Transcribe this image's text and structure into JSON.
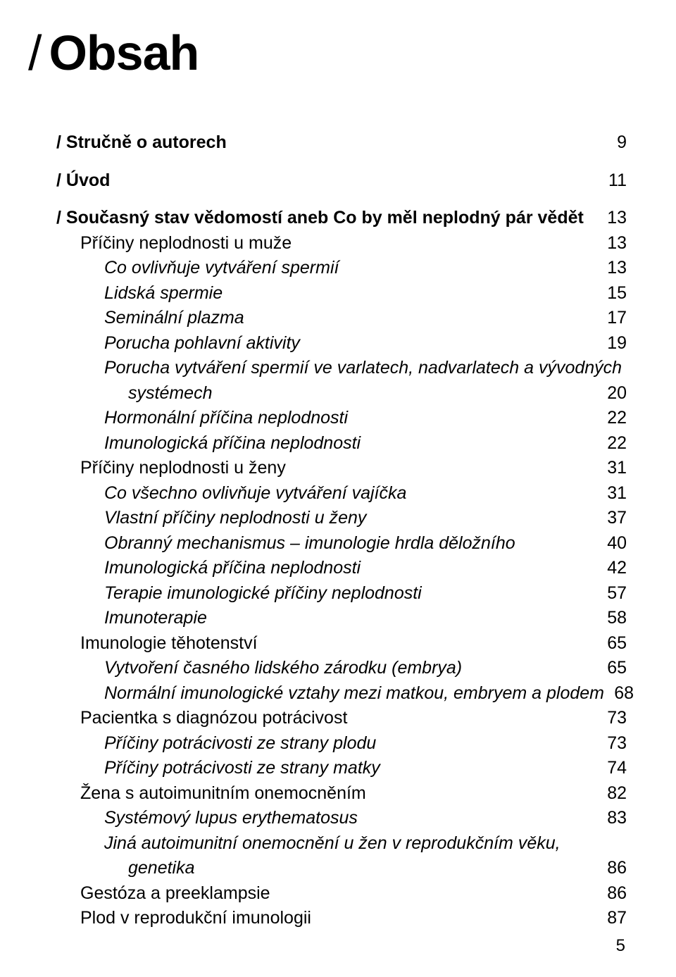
{
  "title": {
    "slash": "/",
    "text": "Obsah"
  },
  "entries": [
    {
      "label": "/ Stručně o autorech",
      "page": "9",
      "indent": 0,
      "style": "bold",
      "gapAfter": true
    },
    {
      "label": "/ Úvod",
      "page": "11",
      "indent": 0,
      "style": "bold",
      "gapAfter": true
    },
    {
      "label": "/ Současný stav vědomostí aneb Co by měl neplodný pár vědět",
      "page": "13",
      "indent": 0,
      "style": "bold"
    },
    {
      "label": "Příčiny neplodnosti u muže",
      "page": "13",
      "indent": 1,
      "style": "plain"
    },
    {
      "label": "Co ovlivňuje vytváření spermií",
      "page": "13",
      "indent": 2,
      "style": "italic"
    },
    {
      "label": "Lidská spermie",
      "page": "15",
      "indent": 2,
      "style": "italic"
    },
    {
      "label": "Seminální plazma",
      "page": "17",
      "indent": 2,
      "style": "italic"
    },
    {
      "label": "Porucha pohlavní aktivity",
      "page": "19",
      "indent": 2,
      "style": "italic"
    },
    {
      "type": "wrapped",
      "indent": 2,
      "style": "italic",
      "line1": "Porucha vytváření spermií ve varlatech, nadvarlatech a vývodných",
      "line2indent": 3,
      "line2": "systémech",
      "page": "20"
    },
    {
      "label": "Hormonální příčina neplodnosti",
      "page": "22",
      "indent": 2,
      "style": "italic"
    },
    {
      "label": "Imunologická příčina neplodnosti",
      "page": "22",
      "indent": 2,
      "style": "italic"
    },
    {
      "label": "Příčiny neplodnosti u ženy",
      "page": "31",
      "indent": 1,
      "style": "plain"
    },
    {
      "label": "Co všechno ovlivňuje vytváření vajíčka",
      "page": "31",
      "indent": 2,
      "style": "italic"
    },
    {
      "label": "Vlastní příčiny neplodnosti u ženy",
      "page": "37",
      "indent": 2,
      "style": "italic"
    },
    {
      "label": "Obranný mechanismus – imunologie hrdla děložního",
      "page": "40",
      "indent": 2,
      "style": "italic"
    },
    {
      "label": "Imunologická příčina neplodnosti",
      "page": "42",
      "indent": 2,
      "style": "italic"
    },
    {
      "label": "Terapie imunologické příčiny neplodnosti",
      "page": "57",
      "indent": 2,
      "style": "italic"
    },
    {
      "label": "Imunoterapie",
      "page": "58",
      "indent": 2,
      "style": "italic"
    },
    {
      "label": "Imunologie těhotenství",
      "page": "65",
      "indent": 1,
      "style": "plain"
    },
    {
      "label": "Vytvoření časného lidského zárodku (embrya)",
      "page": "65",
      "indent": 2,
      "style": "italic"
    },
    {
      "label": "Normální imunologické vztahy mezi matkou, embryem a plodem",
      "page": "68",
      "indent": 2,
      "style": "italic"
    },
    {
      "label": "Pacientka s diagnózou potrácivost",
      "page": "73",
      "indent": 1,
      "style": "plain"
    },
    {
      "label": "Příčiny potrácivosti ze strany plodu",
      "page": "73",
      "indent": 2,
      "style": "italic"
    },
    {
      "label": "Příčiny potrácivosti ze strany matky",
      "page": "74",
      "indent": 2,
      "style": "italic"
    },
    {
      "label": "Žena s autoimunitním onemocněním",
      "page": "82",
      "indent": 1,
      "style": "plain"
    },
    {
      "label": "Systémový lupus erythematosus",
      "page": "83",
      "indent": 2,
      "style": "italic"
    },
    {
      "type": "wrapped",
      "indent": 2,
      "style": "italic",
      "line1": "Jiná autoimunitní onemocnění u žen v reprodukčním věku,",
      "line2indent": 3,
      "line2": "genetika",
      "page": "86"
    },
    {
      "label": "Gestóza a preeklampsie",
      "page": "86",
      "indent": 1,
      "style": "plain"
    },
    {
      "label": "Plod v reprodukční imunologii",
      "page": "87",
      "indent": 1,
      "style": "plain"
    }
  ],
  "footerPage": "5"
}
